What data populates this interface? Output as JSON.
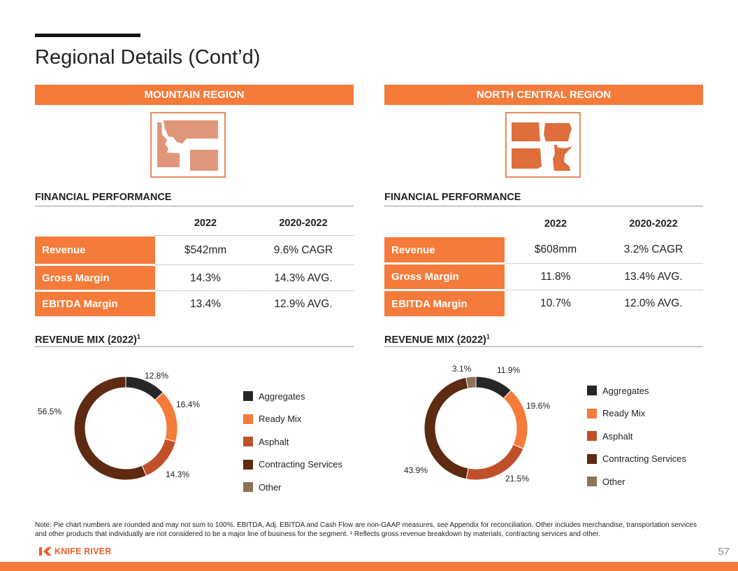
{
  "title": "Regional Details (Cont’d)",
  "regions": [
    {
      "name": "MOUNTAIN REGION",
      "financial_title": "FINANCIAL PERFORMANCE",
      "columns": [
        "2022",
        "2020-2022"
      ],
      "rows": [
        {
          "label": "Revenue",
          "value_2022": "$542mm",
          "value_range": "9.6% CAGR"
        },
        {
          "label": "Gross Margin",
          "value_2022": "14.3%",
          "value_range": "14.3% AVG."
        },
        {
          "label": "EBITDA Margin",
          "value_2022": "13.4%",
          "value_range": "12.9% AVG."
        }
      ],
      "mix_title": "REVENUE MIX (2022)",
      "mix_superscript": "1"
    },
    {
      "name": "NORTH CENTRAL REGION",
      "financial_title": "FINANCIAL PERFORMANCE",
      "columns": [
        "2022",
        "2020-2022"
      ],
      "rows": [
        {
          "label": "Revenue",
          "value_2022": "$608mm",
          "value_range": "3.2% CAGR"
        },
        {
          "label": "Gross Margin",
          "value_2022": "11.8%",
          "value_range": "13.4% AVG."
        },
        {
          "label": "EBITDA Margin",
          "value_2022": "10.7%",
          "value_range": "12.0% AVG."
        }
      ],
      "mix_title": "REVENUE MIX (2022)",
      "mix_superscript": "1"
    }
  ],
  "chart_data": [
    {
      "type": "pie",
      "style": "donut",
      "title": "",
      "categories": [
        "Aggregates",
        "Ready Mix",
        "Asphalt",
        "Contracting Services",
        "Other"
      ],
      "values": [
        12.8,
        16.4,
        14.3,
        56.5,
        0
      ],
      "labels": [
        "12.8%",
        "16.4%",
        "14.3%",
        "56.5%",
        ""
      ],
      "colors": [
        "#262626",
        "#F47B3A",
        "#C0502A",
        "#5E2A12",
        "#8B7355"
      ],
      "legend_position": "right"
    },
    {
      "type": "pie",
      "style": "donut",
      "title": "",
      "categories": [
        "Aggregates",
        "Ready Mix",
        "Asphalt",
        "Contracting Services",
        "Other"
      ],
      "values": [
        11.9,
        19.6,
        21.5,
        43.9,
        3.1
      ],
      "labels": [
        "11.9%",
        "19.6%",
        "21.5%",
        "43.9%",
        "3.1%"
      ],
      "colors": [
        "#262626",
        "#F47B3A",
        "#C0502A",
        "#5E2A12",
        "#8B7355"
      ],
      "legend_position": "right"
    }
  ],
  "note": "Note: Pie chart numbers are rounded and may not sum to 100%. EBITDA, Adj. EBITDA and Cash Flow are non-GAAP measures, see Appendix for reconciliation. Other includes merchandise, transportation services and other products that individually are not considered to be a major line of business for the segment. ¹ Reflects gross revenue breakdown by materials, contracting services and other.",
  "logo_text": "KNIFE RIVER",
  "page_number": "57",
  "colors": {
    "accent": "#F47B3A",
    "map_light": "#E0967A",
    "map_dark": "#DE6E3C"
  }
}
